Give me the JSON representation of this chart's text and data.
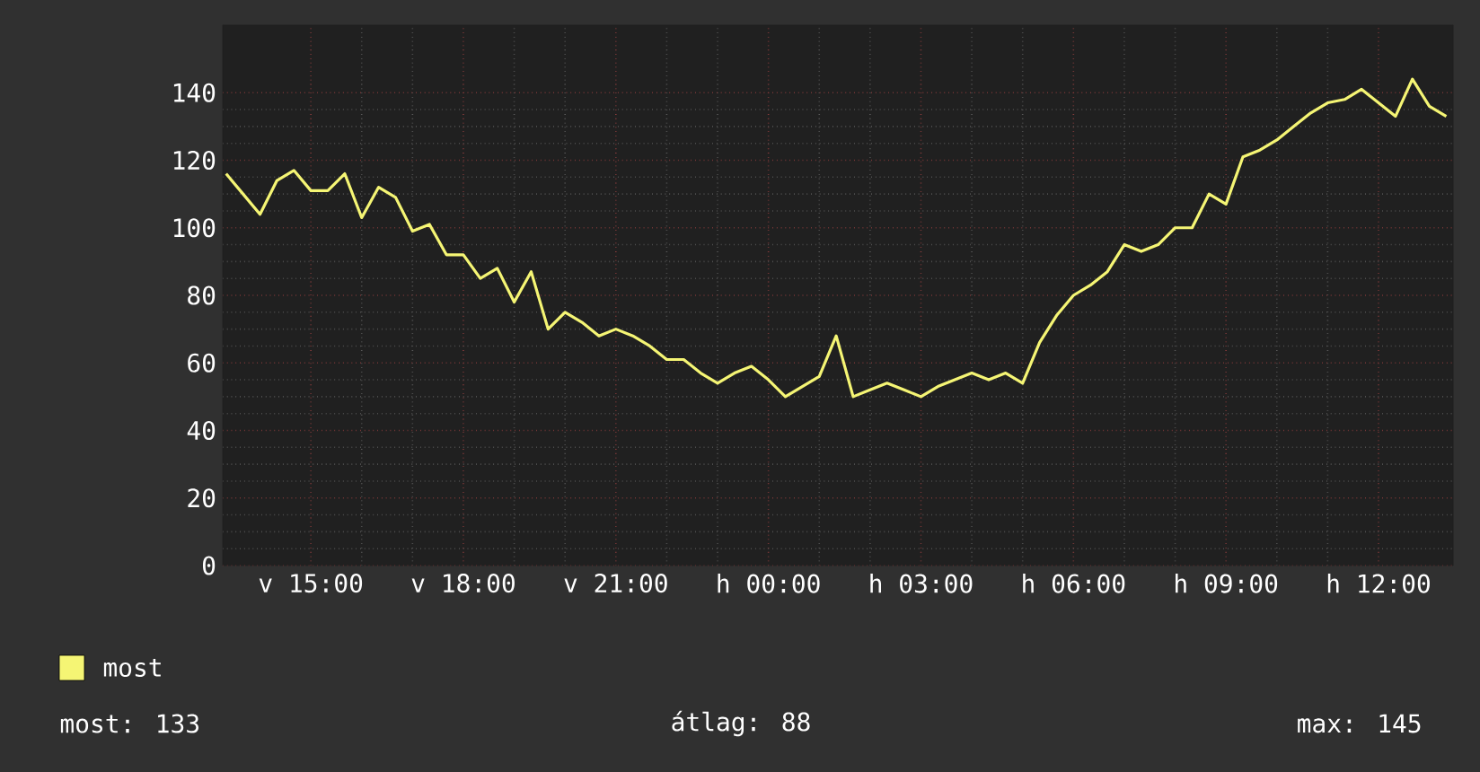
{
  "chart_data": {
    "type": "line",
    "categories": [
      null,
      null,
      null,
      null,
      null,
      "v 15:00",
      null,
      null,
      null,
      null,
      null,
      null,
      null,
      null,
      "v 18:00",
      null,
      null,
      null,
      null,
      null,
      null,
      null,
      null,
      "v 21:00",
      null,
      null,
      null,
      null,
      null,
      null,
      null,
      null,
      "h 00:00",
      null,
      null,
      null,
      null,
      null,
      null,
      null,
      null,
      "h 03:00",
      null,
      null,
      null,
      null,
      null,
      null,
      null,
      null,
      "h 06:00",
      null,
      null,
      null,
      null,
      null,
      null,
      null,
      null,
      "h 09:00",
      null,
      null,
      null,
      null,
      null,
      null,
      null,
      null,
      "h 12:00",
      null,
      null,
      null,
      null
    ],
    "ylim": [
      0,
      160
    ],
    "yticks": [
      0,
      20,
      40,
      60,
      80,
      100,
      120,
      140
    ],
    "grid": true,
    "legend": "bottom",
    "marker": "none",
    "line_style": "solid",
    "series": [
      {
        "name": "most",
        "color": "#f5f574",
        "values": [
          116,
          110,
          104,
          114,
          117,
          111,
          111,
          116,
          103,
          112,
          109,
          99,
          101,
          92,
          92,
          85,
          88,
          78,
          87,
          70,
          75,
          72,
          68,
          70,
          68,
          65,
          61,
          61,
          57,
          54,
          57,
          59,
          55,
          50,
          53,
          56,
          68,
          50,
          52,
          54,
          52,
          50,
          53,
          55,
          57,
          55,
          57,
          54,
          66,
          74,
          80,
          83,
          87,
          95,
          93,
          95,
          100,
          100,
          110,
          107,
          121,
          123,
          126,
          130,
          134,
          137,
          138,
          141,
          137,
          133,
          144,
          136,
          133
        ]
      }
    ],
    "annotations": [
      "most: 133",
      "átlag: 88",
      "max: 145"
    ]
  }
}
